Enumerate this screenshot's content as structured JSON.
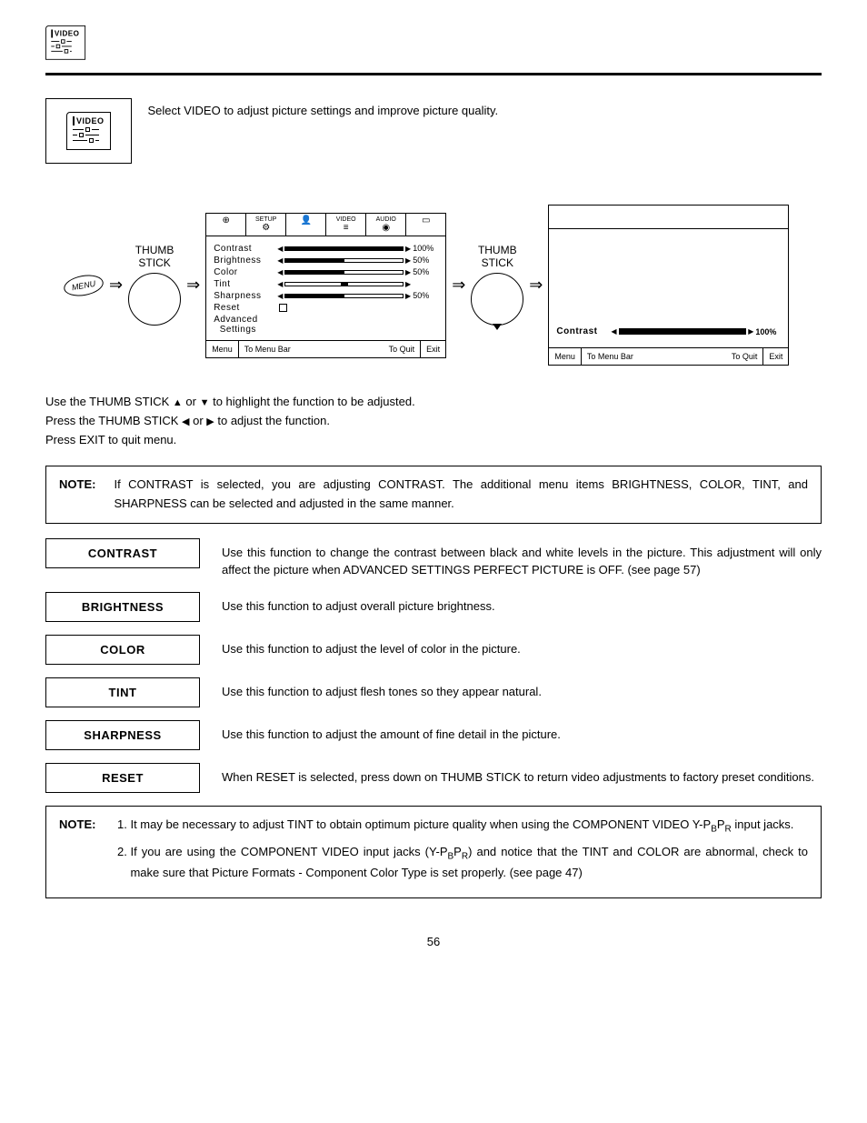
{
  "page_number": "56",
  "header_icon_label": "VIDEO",
  "intro_icon_label": "VIDEO",
  "intro_text": "Select VIDEO to adjust picture settings and improve picture quality.",
  "diagram": {
    "menu_button": "MENU",
    "thumb_label_line1": "THUMB",
    "thumb_label_line2": "STICK",
    "tabs": [
      "",
      "SETUP",
      "",
      "VIDEO",
      "AUDIO",
      ""
    ],
    "settings": [
      {
        "label": "Contrast",
        "value": "100%",
        "fill_pct": 100
      },
      {
        "label": "Brightness",
        "value": "50%",
        "fill_pct": 50
      },
      {
        "label": "Color",
        "value": "50%",
        "fill_pct": 50
      },
      {
        "label": "Tint",
        "value": "",
        "fill_pct": 50,
        "center_marker": true
      },
      {
        "label": "Sharpness",
        "value": "50%",
        "fill_pct": 50
      }
    ],
    "reset_label": "Reset",
    "advanced_label_l1": "Advanced",
    "advanced_label_l2": "Settings",
    "footer_menu": "Menu",
    "footer_mid": "To Menu Bar",
    "footer_quit": "To Quit",
    "footer_exit": "Exit",
    "detail_label": "Contrast",
    "detail_value": "100%",
    "detail_fill_pct": 100
  },
  "instructions": {
    "line1_a": "Use the THUMB STICK ",
    "line1_b": " or ",
    "line1_c": " to highlight the function to be adjusted.",
    "line2_a": "Press the THUMB STICK ",
    "line2_b": " or ",
    "line2_c": " to adjust the function.",
    "line3": "Press EXIT to quit menu."
  },
  "note1": {
    "label": "NOTE:",
    "text": "If CONTRAST is selected, you are adjusting CONTRAST.  The additional menu items BRIGHTNESS, COLOR, TINT, and SHARPNESS can be selected and adjusted in the same manner."
  },
  "functions": [
    {
      "name": "CONTRAST",
      "desc": "Use this function to change the contrast between black and white levels in the picture.  This adjustment will only affect the picture when ADVANCED SETTINGS PERFECT PICTURE is OFF. (see page 57)"
    },
    {
      "name": "BRIGHTNESS",
      "desc": "Use this function to adjust overall picture brightness."
    },
    {
      "name": "COLOR",
      "desc": "Use this function to adjust the level of color in the picture."
    },
    {
      "name": "TINT",
      "desc": "Use this function to adjust flesh tones so they appear natural."
    },
    {
      "name": "SHARPNESS",
      "desc": "Use this function to adjust the amount of fine detail in the picture."
    },
    {
      "name": "RESET",
      "desc": "When RESET is selected, press down on THUMB STICK to return video adjustments to factory preset conditions."
    }
  ],
  "note2": {
    "label": "NOTE:",
    "item1_a": "It may be necessary to adjust TINT to obtain optimum picture quality when using the COMPONENT VIDEO Y-P",
    "item1_b": "P",
    "item1_c": " input jacks.",
    "item2_a": "If you are using the COMPONENT VIDEO input jacks (Y-P",
    "item2_b": "P",
    "item2_c": ") and notice that the TINT and COLOR are abnormal, check to make sure that Picture Formats - Component Color Type is set properly. (see page 47)"
  },
  "colors": {
    "text": "#000000",
    "background": "#ffffff",
    "border": "#000000"
  }
}
